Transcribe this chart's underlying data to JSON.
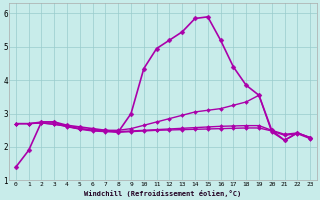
{
  "bg_color": "#c8ecea",
  "line_color": "#aa00aa",
  "grid_color": "#99cccc",
  "xlabel": "Windchill (Refroidissement éolien,°C)",
  "xlim": [
    -0.5,
    23.5
  ],
  "ylim": [
    1.0,
    6.3
  ],
  "yticks": [
    1,
    2,
    3,
    4,
    5,
    6
  ],
  "xticks": [
    0,
    1,
    2,
    3,
    4,
    5,
    6,
    7,
    8,
    9,
    10,
    11,
    12,
    13,
    14,
    15,
    16,
    17,
    18,
    19,
    20,
    21,
    22,
    23
  ],
  "series": [
    {
      "x": [
        0,
        1,
        2,
        3,
        4,
        5,
        6,
        7,
        8,
        9,
        10,
        11,
        12,
        13,
        14,
        15,
        16,
        17,
        18,
        19,
        20,
        21,
        22,
        23
      ],
      "y": [
        1.4,
        1.9,
        2.75,
        2.75,
        2.65,
        2.6,
        2.55,
        2.5,
        2.45,
        3.0,
        4.35,
        4.95,
        5.2,
        5.45,
        5.85,
        5.9,
        5.2,
        4.4,
        3.85,
        3.55,
        2.5,
        2.2,
        2.42,
        2.28
      ],
      "marker": "D",
      "markersize": 2.5,
      "linewidth": 1.2
    },
    {
      "x": [
        0,
        1,
        2,
        3,
        4,
        5,
        6,
        7,
        8,
        9,
        10,
        11,
        12,
        13,
        14,
        15,
        16,
        17,
        18,
        19,
        20,
        21,
        22,
        23
      ],
      "y": [
        2.7,
        2.7,
        2.75,
        2.75,
        2.6,
        2.55,
        2.5,
        2.5,
        2.5,
        2.55,
        2.65,
        2.75,
        2.85,
        2.95,
        3.05,
        3.1,
        3.15,
        3.25,
        3.35,
        3.55,
        2.45,
        2.2,
        2.42,
        2.28
      ],
      "marker": "D",
      "markersize": 2.0,
      "linewidth": 1.0
    },
    {
      "x": [
        0,
        1,
        2,
        3,
        4,
        5,
        6,
        7,
        8,
        9,
        10,
        11,
        12,
        13,
        14,
        15,
        16,
        17,
        18,
        19,
        20,
        21,
        22,
        23
      ],
      "y": [
        2.7,
        2.7,
        2.72,
        2.68,
        2.62,
        2.55,
        2.5,
        2.48,
        2.46,
        2.48,
        2.5,
        2.52,
        2.54,
        2.56,
        2.58,
        2.6,
        2.62,
        2.63,
        2.64,
        2.64,
        2.5,
        2.38,
        2.42,
        2.28
      ],
      "marker": "D",
      "markersize": 2.0,
      "linewidth": 1.0
    },
    {
      "x": [
        0,
        1,
        2,
        3,
        4,
        5,
        6,
        7,
        8,
        9,
        10,
        11,
        12,
        13,
        14,
        15,
        16,
        17,
        18,
        19,
        20,
        21,
        22,
        23
      ],
      "y": [
        2.7,
        2.7,
        2.72,
        2.68,
        2.62,
        2.53,
        2.48,
        2.46,
        2.44,
        2.46,
        2.48,
        2.5,
        2.51,
        2.52,
        2.53,
        2.54,
        2.55,
        2.56,
        2.57,
        2.57,
        2.48,
        2.35,
        2.4,
        2.25
      ],
      "marker": "D",
      "markersize": 2.0,
      "linewidth": 1.0
    }
  ]
}
